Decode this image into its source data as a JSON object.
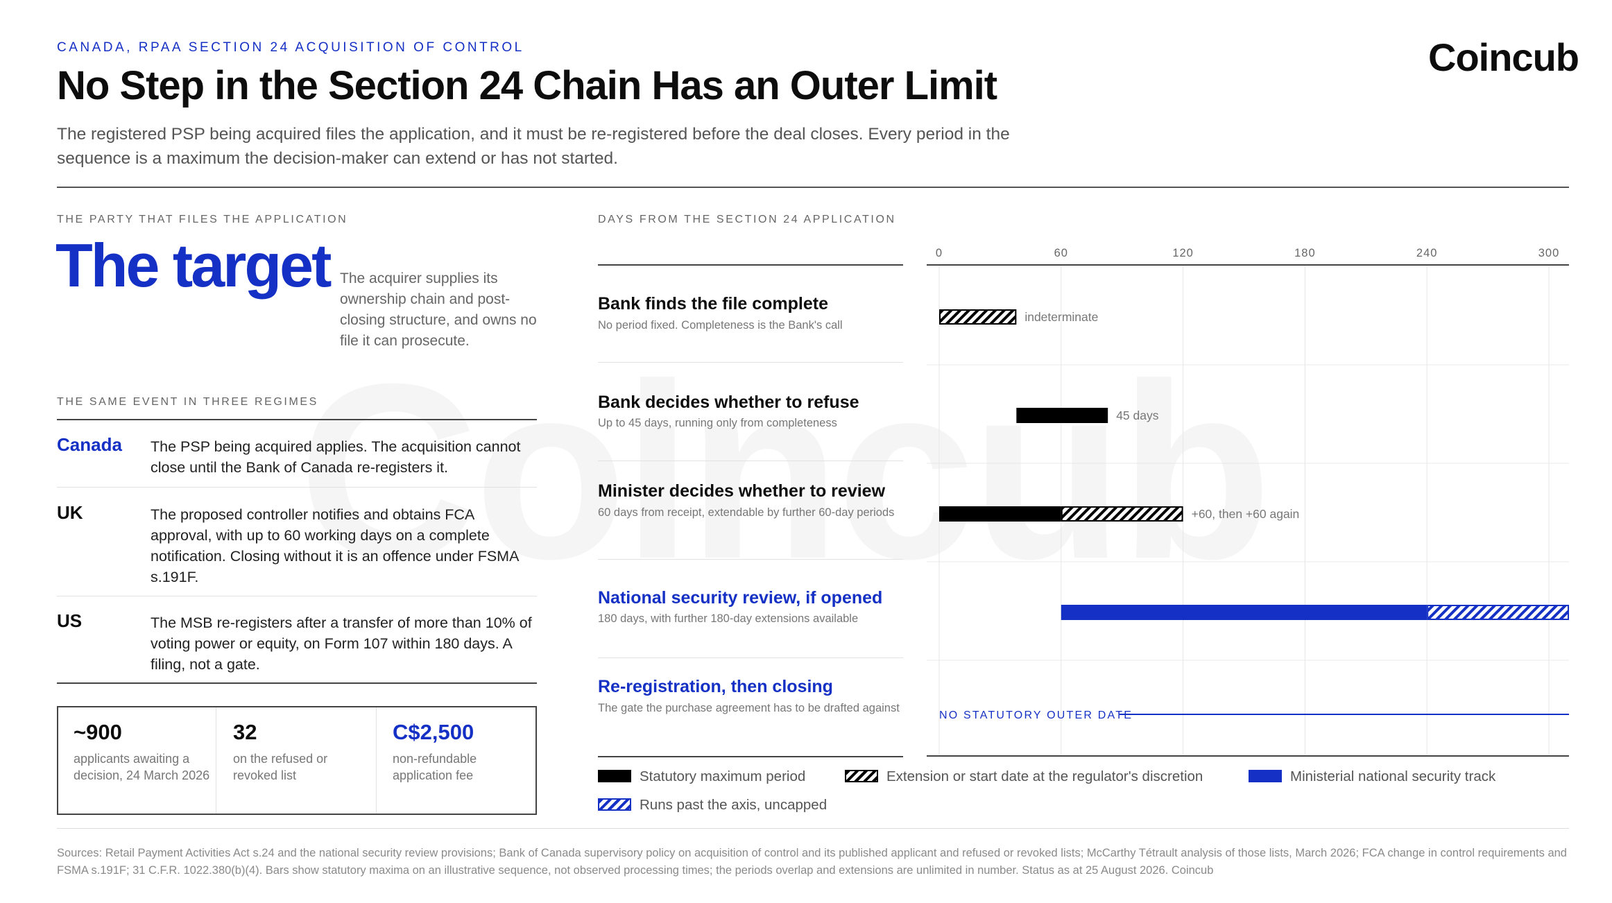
{
  "header": {
    "kicker": "CANADA, RPAA SECTION 24 ACQUISITION OF CONTROL",
    "logo": "Coincub",
    "title": "No Step in the Section 24 Chain Has an Outer Limit",
    "subtitle": "The registered PSP being acquired files the application, and it must be re-registered before the deal closes. Every period in the sequence is a maximum the decision-maker can extend or has not started."
  },
  "watermark": "Coincub",
  "left": {
    "party_label": "THE PARTY THAT FILES THE APPLICATION",
    "target": "The target",
    "target_note": "The acquirer supplies its ownership chain and post-closing structure, and owns no file it can prosecute.",
    "regimes_label": "THE SAME EVENT IN THREE REGIMES",
    "regimes": [
      {
        "name": "Canada",
        "text": "The PSP being acquired applies. The acquisition cannot close until the Bank of Canada re-registers it."
      },
      {
        "name": "UK",
        "text": "The proposed controller notifies and obtains FCA approval, with up to 60 working days on a complete notification. Closing without it is an offence under FSMA s.191F."
      },
      {
        "name": "US",
        "text": "The MSB re-registers after a transfer of more than 10% of voting power or equity, on Form 107 within 180 days. A filing, not a gate."
      }
    ],
    "stats": [
      {
        "value": "~900",
        "label": "applicants awaiting a decision, 24 March 2026"
      },
      {
        "value": "32",
        "label": "on the refused or revoked list"
      },
      {
        "value": "C$2,500",
        "label": "non-refundable application fee"
      }
    ]
  },
  "chart_label": "DAYS FROM THE SECTION 24 APPLICATION",
  "chart_data": {
    "type": "bar",
    "orientation": "horizontal-gantt",
    "xlim": [
      0,
      310
    ],
    "ticks": [
      "0",
      "60",
      "120",
      "180",
      "240",
      "300"
    ],
    "tick_values": [
      0,
      60,
      120,
      180,
      240,
      300
    ],
    "grid": true,
    "legend_position": "bottom",
    "steps": [
      {
        "title": "Bank finds the file complete",
        "desc": "No period fixed. Completeness is the Bank's call",
        "accent": false,
        "segments": [
          {
            "start": 0,
            "end": 38,
            "style": "hatch"
          }
        ],
        "annotation": "indeterminate"
      },
      {
        "title": "Bank decides whether to refuse",
        "desc": "Up to 45 days, running only from completeness",
        "accent": false,
        "segments": [
          {
            "start": 38,
            "end": 83,
            "style": "black"
          }
        ],
        "annotation": "45 days"
      },
      {
        "title": "Minister decides whether to review",
        "desc": "60 days from receipt, extendable by further 60-day periods",
        "accent": false,
        "segments": [
          {
            "start": 0,
            "end": 60,
            "style": "black"
          },
          {
            "start": 60,
            "end": 120,
            "style": "hatch"
          }
        ],
        "annotation": "+60, then +60 again"
      },
      {
        "title": "National security review, if opened",
        "desc": "180 days, with further 180-day extensions available",
        "accent": true,
        "segments": [
          {
            "start": 60,
            "end": 240,
            "style": "blue"
          },
          {
            "start": 240,
            "end": 310,
            "style": "bluehatch"
          }
        ],
        "annotation": ""
      },
      {
        "title": "Re-registration, then closing",
        "desc": "The gate the purchase agreement has to be drafted against",
        "accent": true,
        "segments": [],
        "annotation": "NO STATUTORY OUTER DATE",
        "line_to_end": true
      }
    ],
    "legend": [
      {
        "style": "black",
        "label": "Statutory maximum period"
      },
      {
        "style": "hatch",
        "label": "Extension or start date at the regulator's discretion"
      },
      {
        "style": "blue",
        "label": "Ministerial national security track"
      },
      {
        "style": "bluehatch",
        "label": "Runs past the axis, uncapped"
      }
    ],
    "colors": {
      "black": "#000000",
      "blue": "#1530c4",
      "grid": "#e6e6e6",
      "axis": "#444444"
    }
  },
  "footer": {
    "sources": "Sources: Retail Payment Activities Act s.24 and the national security review provisions; Bank of Canada supervisory policy on acquisition of control and its published applicant and refused or revoked lists; McCarthy Tétrault analysis of those lists, March 2026; FCA change in control requirements and FSMA s.191F; 31 C.F.R. 1022.380(b)(4). Bars show statutory maxima on an illustrative sequence, not observed processing times; the periods overlap and extensions are unlimited in number. Status as at 25 August 2026. Coincub"
  }
}
